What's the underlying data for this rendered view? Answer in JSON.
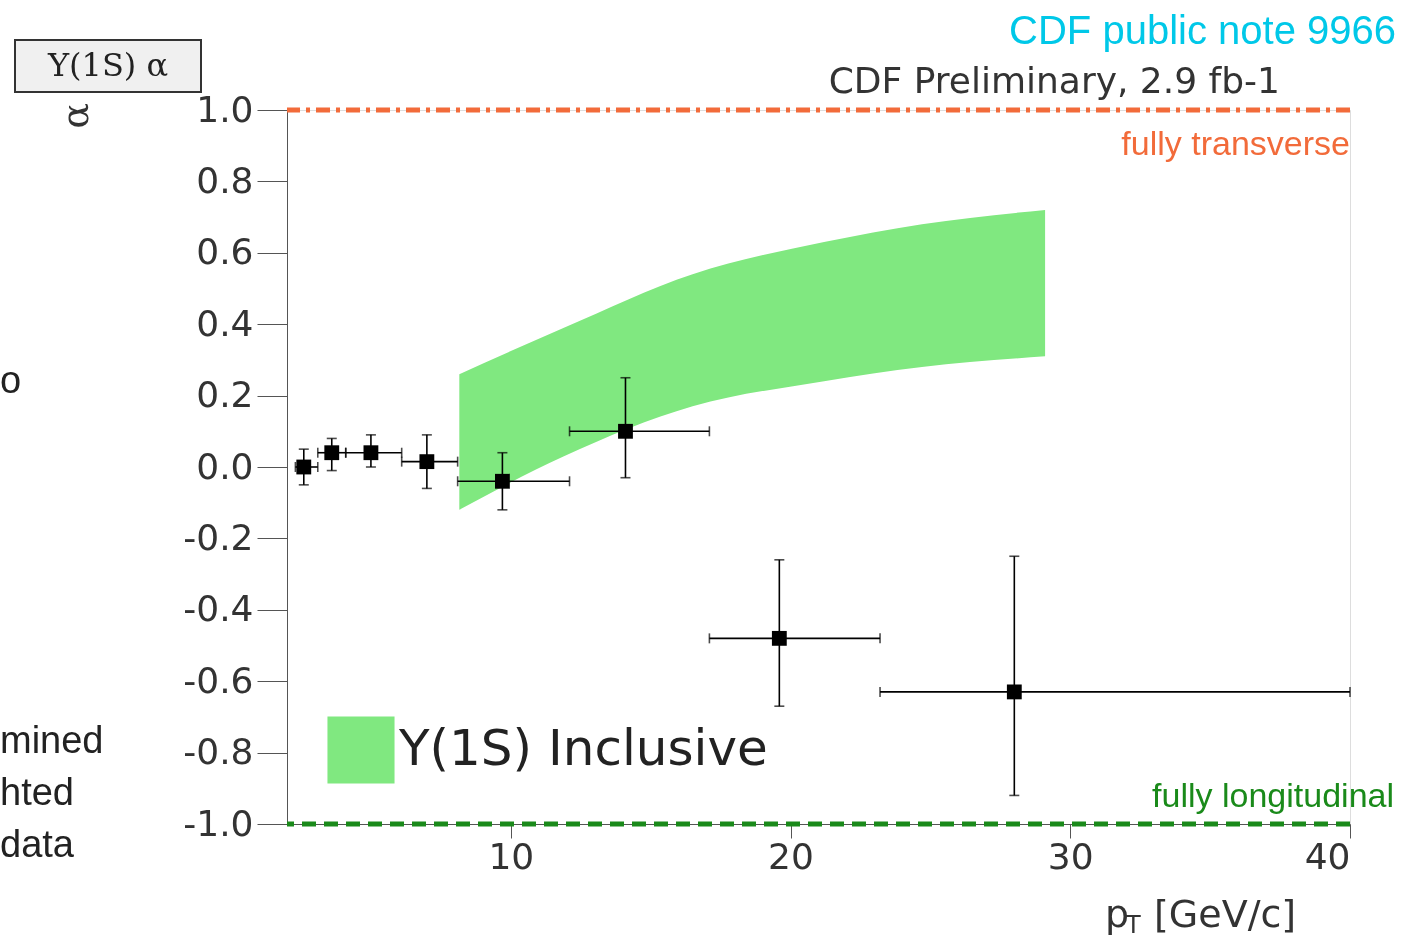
{
  "chart_data": {
    "type": "scatter",
    "title": "CDF Preliminary, 2.9 fb-1",
    "xlabel": "p$_{T}$ [GeV/c]",
    "ylabel": "α",
    "annotations": [
      "CDF public note 9966",
      "Y(1S)  α",
      "o",
      "mined",
      "hted",
      "data"
    ],
    "xlim": [
      2,
      40
    ],
    "xticks": [
      10,
      20,
      30,
      40
    ],
    "ylim": [
      -1.0,
      1.0
    ],
    "yticks": [
      {
        "value": -1.0,
        "label": "-1.0"
      },
      {
        "value": -0.8,
        "label": "-0.8"
      },
      {
        "value": -0.6,
        "label": "-0.6"
      },
      {
        "value": -0.4,
        "label": "-0.4"
      },
      {
        "value": -0.2,
        "label": "-0.2"
      },
      {
        "value": 0.0,
        "label": "0.0"
      },
      {
        "value": 0.2,
        "label": "0.2"
      },
      {
        "value": 0.4,
        "label": "0.4"
      },
      {
        "value": 0.6,
        "label": "0.6"
      },
      {
        "value": 0.8,
        "label": "0.8"
      },
      {
        "value": 1.0,
        "label": "1.0"
      }
    ],
    "grid": false,
    "legend": "bottom left",
    "marker": "square",
    "series": [
      {
        "name": "Y(1S) Inclusive",
        "type": "area",
        "color": "#80e880",
        "x": [
          8.16,
          11.9,
          16.5,
          21.2,
          24.7,
          29.1
        ],
        "values": [
          null,
          null,
          null,
          null,
          null,
          null
        ],
        "lower": [
          -0.12,
          0.03,
          0.17,
          0.24,
          0.28,
          0.31
        ],
        "upper": [
          0.26,
          0.39,
          0.54,
          0.63,
          0.68,
          0.72
        ]
      },
      {
        "color": "#000000",
        "x": [
          2.6,
          3.6,
          5.0,
          7.0,
          9.7,
          14.1,
          19.6,
          28.0
        ],
        "values": [
          0.0,
          0.04,
          0.04,
          0.015,
          -0.04,
          0.1,
          -0.48,
          -0.63
        ],
        "errors": [
          [
            -0.05,
            0.05
          ],
          [
            -0.01,
            0.08
          ],
          [
            0.0,
            0.09
          ],
          [
            -0.06,
            0.09
          ],
          [
            -0.12,
            0.04
          ],
          [
            -0.03,
            0.25
          ],
          [
            -0.67,
            -0.26
          ],
          [
            -0.92,
            -0.25
          ]
        ],
        "xerrors": [
          [
            2.3,
            3.1
          ],
          [
            3.1,
            4.1
          ],
          [
            4.1,
            6.1
          ],
          [
            6.1,
            8.1
          ],
          [
            8.1,
            12.1
          ],
          [
            12.1,
            17.1
          ],
          [
            17.1,
            23.2
          ],
          [
            23.2,
            40
          ]
        ]
      }
    ],
    "ref_lines": [
      {
        "axis": "y",
        "value": 1.0,
        "label": "fully transverse",
        "color": "#f26b3a",
        "line_style": "dashdot"
      },
      {
        "axis": "y",
        "value": -1.0,
        "label": "fully longitudinal",
        "color": "#1a8a1a",
        "line_style": "dashed"
      }
    ]
  }
}
